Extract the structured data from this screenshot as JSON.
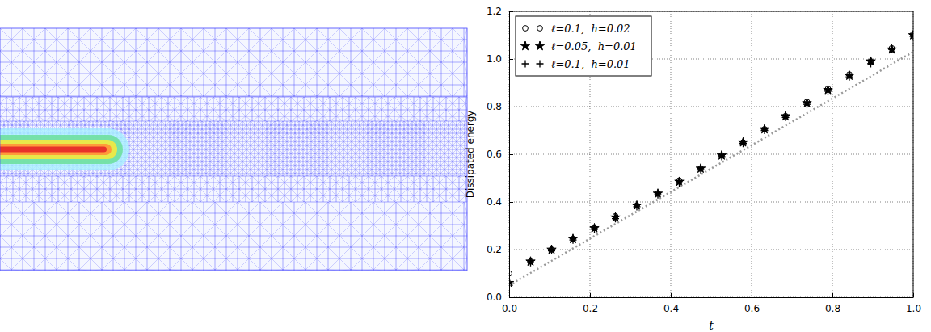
{
  "chart_data": {
    "type": "scatter",
    "x_label": "t",
    "y_label": "Dissipated energy",
    "x": [
      0.0,
      0.053,
      0.105,
      0.158,
      0.211,
      0.263,
      0.316,
      0.368,
      0.421,
      0.474,
      0.526,
      0.579,
      0.632,
      0.684,
      0.737,
      0.789,
      0.842,
      0.895,
      0.947,
      1.0
    ],
    "series": [
      {
        "name": "ℓ=0.1,  h=0.02",
        "type": "scatter",
        "marker": "circle",
        "color": "#000000",
        "values": [
          0.1,
          0.15,
          0.2,
          0.245,
          0.29,
          0.34,
          0.385,
          0.435,
          0.49,
          0.54,
          0.595,
          0.65,
          0.705,
          0.76,
          0.82,
          0.875,
          0.935,
          0.99,
          1.045,
          1.105
        ]
      },
      {
        "name": "ℓ=0.05,  h=0.01",
        "type": "scatter",
        "marker": "star",
        "color": "#000000",
        "values": [
          0.06,
          0.15,
          0.2,
          0.245,
          0.29,
          0.335,
          0.385,
          0.435,
          0.485,
          0.54,
          0.595,
          0.65,
          0.705,
          0.76,
          0.815,
          0.87,
          0.93,
          0.99,
          1.04,
          1.1
        ]
      },
      {
        "name": "ℓ=0.1,  h=0.01",
        "type": "scatter",
        "marker": "plus",
        "color": "#000000",
        "values": [
          0.05,
          0.145,
          0.195,
          0.24,
          0.285,
          0.33,
          0.38,
          0.43,
          0.48,
          0.535,
          0.59,
          0.645,
          0.7,
          0.755,
          0.81,
          0.865,
          0.925,
          0.98,
          1.04,
          1.095
        ]
      },
      {
        "type": "line",
        "line_style": "dotted",
        "color": "#999999",
        "x": [
          0.0,
          1.0
        ],
        "values": [
          0.05,
          1.03
        ]
      }
    ],
    "xlim": [
      0.0,
      1.0
    ],
    "ylim": [
      0.0,
      1.2
    ],
    "xticks": [
      {
        "value": 0.0,
        "label": "0.0"
      },
      {
        "value": 0.2,
        "label": "0.2"
      },
      {
        "value": 0.4,
        "label": "0.4"
      },
      {
        "value": 0.6,
        "label": "0.6"
      },
      {
        "value": 0.8,
        "label": "0.8"
      },
      {
        "value": 1.0,
        "label": "1.0"
      }
    ],
    "yticks": [
      {
        "value": 0.0,
        "label": "0.0"
      },
      {
        "value": 0.2,
        "label": "0.2"
      },
      {
        "value": 0.4,
        "label": "0.4"
      },
      {
        "value": 0.6,
        "label": "0.6"
      },
      {
        "value": 0.8,
        "label": "0.8"
      },
      {
        "value": 1.0,
        "label": "1.0"
      },
      {
        "value": 1.2,
        "label": "1.2"
      }
    ],
    "grid": true,
    "legend": "upper left"
  }
}
